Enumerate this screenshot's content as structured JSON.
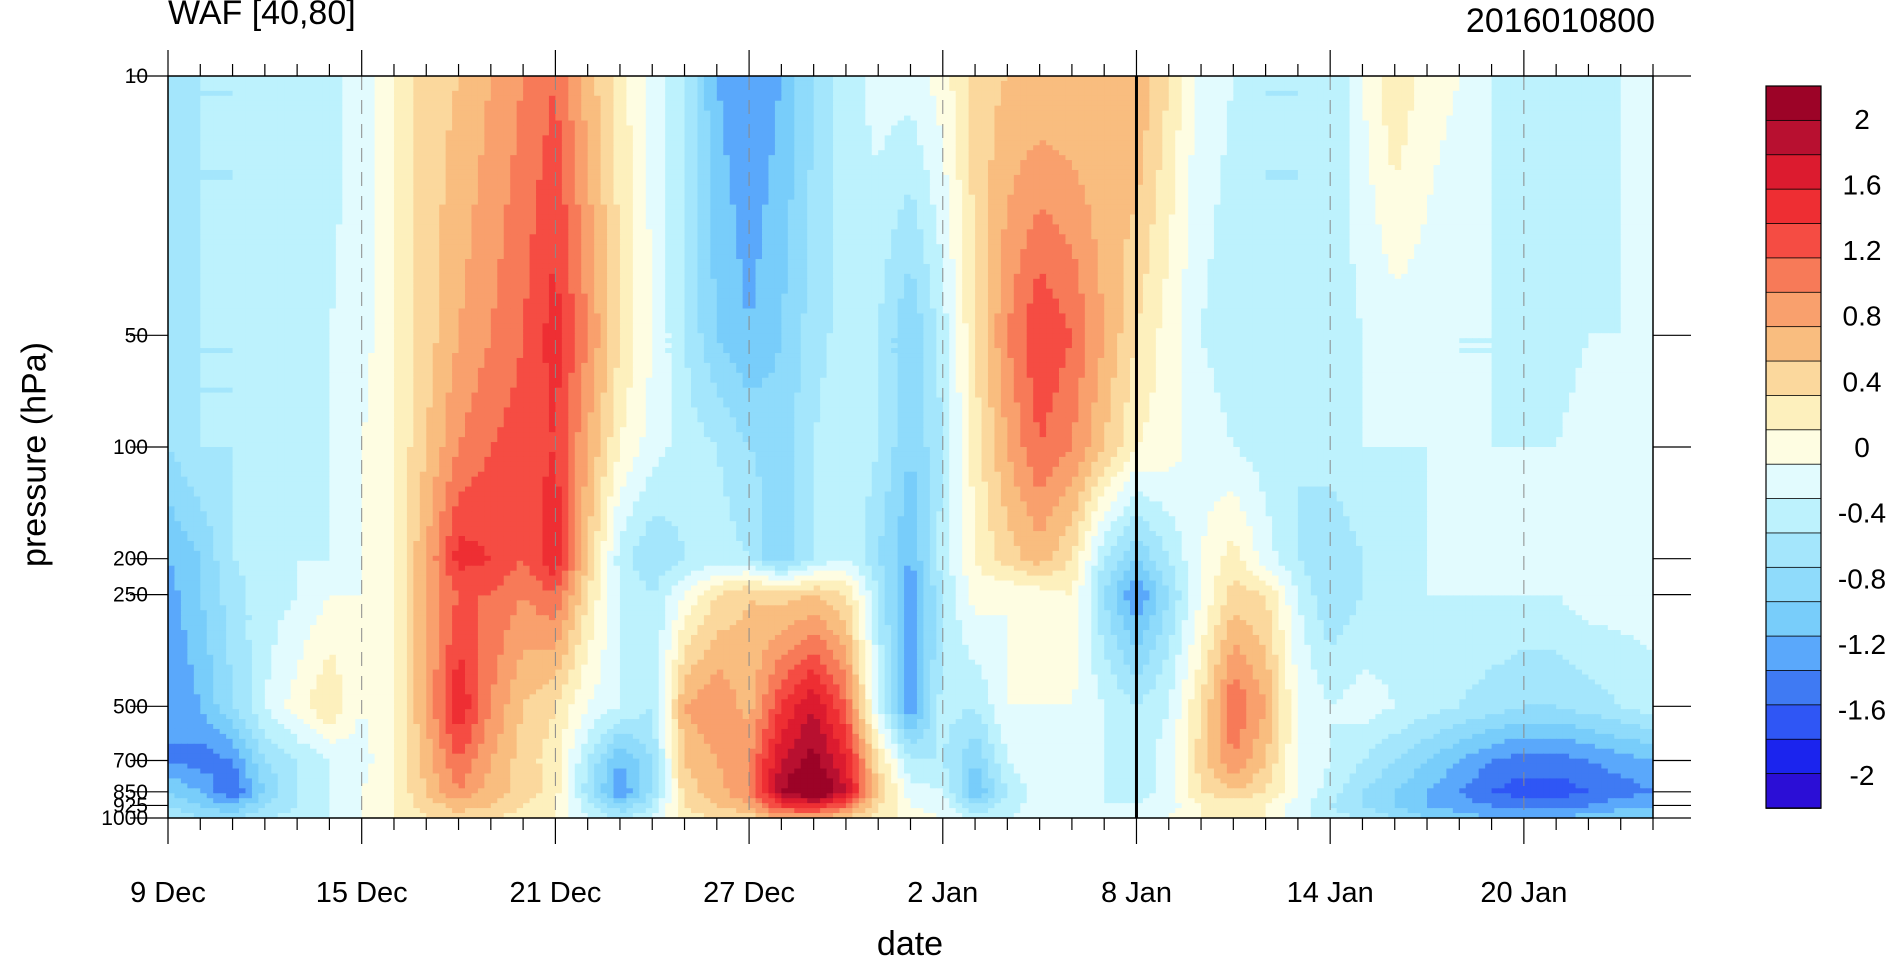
{
  "chart_data": {
    "type": "heatmap",
    "title": "WAF [40,80]",
    "subtitle": "2016010800",
    "xlabel": "date",
    "ylabel": "pressure (hPa)",
    "x_tick_labels": [
      "9 Dec",
      "15 Dec",
      "21 Dec",
      "27 Dec",
      "2 Jan",
      "8 Jan",
      "14 Jan",
      "20 Jan"
    ],
    "y_tick_labels": [
      "10",
      "50",
      "100",
      "200",
      "250",
      "500",
      "700",
      "850",
      "925",
      "1000"
    ],
    "y_tick_values": [
      10,
      50,
      100,
      200,
      250,
      500,
      700,
      850,
      925,
      1000
    ],
    "y_scale": "log",
    "ylim": [
      1000,
      10
    ],
    "x_days": [
      "2015-12-09",
      "2015-12-10",
      "2015-12-11",
      "2015-12-12",
      "2015-12-13",
      "2015-12-14",
      "2015-12-15",
      "2015-12-16",
      "2015-12-17",
      "2015-12-18",
      "2015-12-19",
      "2015-12-20",
      "2015-12-21",
      "2015-12-22",
      "2015-12-23",
      "2015-12-24",
      "2015-12-25",
      "2015-12-26",
      "2015-12-27",
      "2015-12-28",
      "2015-12-29",
      "2015-12-30",
      "2015-12-31",
      "2016-01-01",
      "2016-01-02",
      "2016-01-03",
      "2016-01-04",
      "2016-01-05",
      "2016-01-06",
      "2016-01-07",
      "2016-01-08",
      "2016-01-09",
      "2016-01-10",
      "2016-01-11",
      "2016-01-12",
      "2016-01-13",
      "2016-01-14",
      "2016-01-15",
      "2016-01-16",
      "2016-01-17",
      "2016-01-18",
      "2016-01-19",
      "2016-01-20",
      "2016-01-21",
      "2016-01-22",
      "2016-01-23",
      "2016-01-24"
    ],
    "current_date": "2016-01-08",
    "colorbar": {
      "levels": [
        -2.2,
        -2.0,
        -1.8,
        -1.6,
        -1.4,
        -1.2,
        -1.0,
        -0.8,
        -0.6,
        -0.4,
        -0.2,
        0.0,
        0.2,
        0.4,
        0.6,
        0.8,
        1.0,
        1.2,
        1.4,
        1.6,
        1.8,
        2.0,
        2.2
      ],
      "tick_labels": [
        "2",
        "1.6",
        "1.2",
        "0.8",
        "0.4",
        "0",
        "-0.4",
        "-0.8",
        "-1.2",
        "-1.6",
        "-2"
      ],
      "tick_values": [
        2.0,
        1.6,
        1.2,
        0.8,
        0.4,
        0.0,
        -0.4,
        -0.8,
        -1.2,
        -1.6,
        -2.0
      ],
      "colors": [
        "#2b0ed6",
        "#1b24ee",
        "#2f56f5",
        "#3f7af3",
        "#5aa8fb",
        "#78cdfa",
        "#8fdbfb",
        "#a4e6fc",
        "#bdf2fd",
        "#e2fbfe",
        "#fefde2",
        "#fdf0bd",
        "#fbd89d",
        "#f9bd7f",
        "#f9a06d",
        "#f77a58",
        "#f54c43",
        "#ee2e33",
        "#dc1b2f",
        "#b81030",
        "#9c0327"
      ]
    },
    "values_pressure_levels": [
      10,
      50,
      100,
      200,
      250,
      500,
      700,
      850,
      925,
      1000
    ],
    "values_note": "rows are pressure levels (top to bottom), columns are days 9 Dec to 24 Jan",
    "values": [
      [
        -0.7,
        -0.6,
        -0.6,
        -0.5,
        -0.5,
        -0.5,
        -0.3,
        0.0,
        0.3,
        0.4,
        0.6,
        0.8,
        1.0,
        0.5,
        0.1,
        -0.3,
        -0.6,
        -1.2,
        -1.4,
        -1.2,
        -0.8,
        -0.5,
        -0.3,
        -0.3,
        -0.1,
        0.3,
        0.4,
        0.4,
        0.4,
        0.4,
        0.6,
        0.2,
        -0.3,
        -0.4,
        -0.6,
        -0.6,
        -0.6,
        -0.2,
        0.2,
        -0.1,
        -0.2,
        -0.4,
        -0.6,
        -0.6,
        -0.5,
        -0.4,
        -0.3
      ],
      [
        -0.7,
        -0.6,
        -0.6,
        -0.6,
        -0.5,
        -0.4,
        -0.3,
        0.0,
        0.3,
        0.6,
        0.8,
        1.0,
        1.3,
        0.8,
        0.2,
        -0.2,
        -0.6,
        -1.0,
        -1.2,
        -1.0,
        -0.7,
        -0.5,
        -0.6,
        -1.0,
        -0.5,
        0.2,
        0.8,
        1.2,
        1.0,
        0.6,
        0.2,
        -0.1,
        -0.4,
        -0.5,
        -0.6,
        -0.6,
        -0.5,
        -0.4,
        -0.3,
        -0.3,
        -0.4,
        -0.4,
        -0.5,
        -0.5,
        -0.4,
        -0.4,
        -0.3
      ],
      [
        -0.8,
        -0.6,
        -0.6,
        -0.5,
        -0.5,
        -0.4,
        -0.2,
        0.0,
        0.4,
        0.8,
        1.0,
        1.1,
        1.2,
        0.6,
        0.0,
        -0.3,
        -0.5,
        -0.6,
        -0.8,
        -0.9,
        -0.6,
        -0.4,
        -0.6,
        -1.0,
        -0.6,
        0.1,
        0.6,
        1.0,
        0.8,
        0.4,
        0.0,
        -0.1,
        -0.3,
        -0.4,
        -0.5,
        -0.6,
        -0.5,
        -0.4,
        -0.4,
        -0.4,
        -0.4,
        -0.4,
        -0.4,
        -0.4,
        -0.3,
        -0.3,
        -0.2
      ],
      [
        -1.2,
        -1.0,
        -0.6,
        -0.5,
        -0.4,
        -0.4,
        -0.2,
        0.0,
        0.6,
        1.3,
        1.2,
        1.0,
        1.4,
        0.4,
        -0.5,
        -0.8,
        -0.6,
        -0.5,
        -0.6,
        -1.0,
        -0.6,
        -0.4,
        -0.8,
        -1.2,
        -0.5,
        0.0,
        0.3,
        0.5,
        0.2,
        -0.6,
        -1.0,
        -0.6,
        -0.2,
        0.1,
        -0.3,
        -0.6,
        -0.8,
        -0.6,
        -0.5,
        -0.4,
        -0.4,
        -0.4,
        -0.4,
        -0.4,
        -0.3,
        -0.3,
        -0.3
      ],
      [
        -1.3,
        -1.0,
        -0.7,
        -0.5,
        -0.4,
        -0.2,
        -0.2,
        0.0,
        0.6,
        1.0,
        1.0,
        0.8,
        1.0,
        0.2,
        -0.4,
        -0.6,
        -0.2,
        0.2,
        0.4,
        0.3,
        0.4,
        0.2,
        -0.6,
        -1.4,
        -0.6,
        -0.1,
        -0.2,
        -0.1,
        0.0,
        -0.8,
        -1.4,
        -0.8,
        -0.2,
        0.3,
        0.2,
        -0.4,
        -0.8,
        -0.6,
        -0.5,
        -0.4,
        -0.4,
        -0.4,
        -0.4,
        -0.4,
        -0.3,
        -0.3,
        -0.3
      ],
      [
        -1.4,
        -1.2,
        -0.8,
        -0.4,
        -0.1,
        0.2,
        -0.2,
        0.0,
        0.6,
        1.4,
        0.8,
        0.4,
        0.2,
        -0.2,
        -0.4,
        -0.6,
        0.6,
        0.8,
        0.5,
        1.2,
        1.6,
        1.0,
        -0.4,
        -1.4,
        -0.5,
        -0.6,
        -0.2,
        -0.2,
        -0.2,
        -0.4,
        -0.6,
        -0.4,
        0.2,
        1.0,
        0.6,
        -0.2,
        -0.4,
        -0.3,
        -0.4,
        -0.5,
        -0.6,
        -0.7,
        -0.8,
        -0.8,
        -0.7,
        -0.6,
        -0.5
      ],
      [
        -1.4,
        -1.5,
        -1.4,
        -0.8,
        -0.6,
        -0.4,
        -0.3,
        0.0,
        0.5,
        1.0,
        0.6,
        0.3,
        0.1,
        -0.6,
        -1.2,
        -0.8,
        0.4,
        0.6,
        0.8,
        1.6,
        1.9,
        1.4,
        0.2,
        -0.6,
        -0.6,
        -1.0,
        -0.4,
        -0.2,
        -0.3,
        -0.4,
        -0.5,
        -0.3,
        0.3,
        0.8,
        0.4,
        -0.2,
        -0.4,
        -0.6,
        -0.8,
        -1.0,
        -1.2,
        -1.4,
        -1.5,
        -1.5,
        -1.4,
        -1.3,
        -1.2
      ],
      [
        -1.0,
        -1.2,
        -1.6,
        -1.0,
        -0.6,
        -0.4,
        -0.2,
        0.0,
        0.4,
        0.8,
        0.5,
        0.3,
        0.1,
        -0.7,
        -1.4,
        -0.8,
        0.3,
        0.5,
        0.8,
        1.8,
        2.2,
        1.6,
        0.4,
        -0.3,
        -0.4,
        -1.2,
        -0.6,
        -0.3,
        -0.3,
        -0.4,
        -0.5,
        -0.3,
        0.2,
        0.4,
        0.2,
        -0.2,
        -0.5,
        -0.8,
        -1.0,
        -1.2,
        -1.4,
        -1.6,
        -1.7,
        -1.7,
        -1.6,
        -1.5,
        -1.4
      ],
      [
        -0.8,
        -1.0,
        -1.2,
        -0.8,
        -0.6,
        -0.4,
        -0.2,
        0.0,
        0.3,
        0.5,
        0.4,
        0.2,
        0.0,
        -0.5,
        -1.0,
        -0.6,
        0.2,
        0.4,
        0.6,
        1.2,
        1.4,
        1.0,
        0.2,
        -0.2,
        -0.3,
        -0.8,
        -0.5,
        -0.3,
        -0.3,
        -0.4,
        -0.4,
        -0.3,
        0.0,
        0.1,
        0.0,
        -0.3,
        -0.6,
        -0.8,
        -1.0,
        -1.2,
        -1.3,
        -1.4,
        -1.5,
        -1.5,
        -1.4,
        -1.3,
        -1.2
      ],
      [
        -0.6,
        -0.8,
        -0.8,
        -0.6,
        -0.5,
        -0.4,
        -0.2,
        0.0,
        0.2,
        0.3,
        0.2,
        0.1,
        0.0,
        -0.4,
        -0.6,
        -0.4,
        0.1,
        0.2,
        0.3,
        0.6,
        0.6,
        0.4,
        0.1,
        -0.1,
        -0.2,
        -0.5,
        -0.4,
        -0.3,
        -0.3,
        -0.3,
        -0.3,
        -0.2,
        0.0,
        0.0,
        0.0,
        -0.3,
        -0.5,
        -0.6,
        -0.8,
        -1.0,
        -1.1,
        -1.2,
        -1.2,
        -1.2,
        -1.1,
        -1.0,
        -1.0
      ]
    ]
  }
}
